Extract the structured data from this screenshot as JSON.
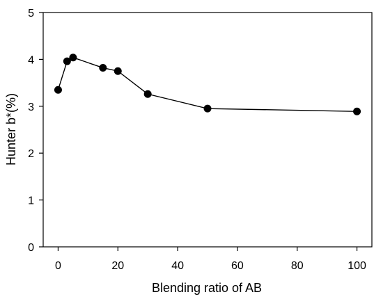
{
  "chart_data": {
    "type": "line",
    "title": "",
    "xlabel": "Blending ratio of AB",
    "ylabel": "Hunter b*(%)",
    "xlim": [
      -5,
      105
    ],
    "ylim": [
      0,
      5
    ],
    "x_ticks": [
      0,
      20,
      40,
      60,
      80,
      100
    ],
    "y_ticks": [
      0,
      1,
      2,
      3,
      4,
      5
    ],
    "grid": false,
    "legend": "none",
    "series": [
      {
        "x": [
          0,
          3,
          5,
          15,
          20,
          30,
          50,
          100
        ],
        "y": [
          3.35,
          3.96,
          4.04,
          3.82,
          3.75,
          3.26,
          2.95,
          2.89
        ],
        "marker": "filled-circle",
        "color": "#000000"
      }
    ]
  }
}
